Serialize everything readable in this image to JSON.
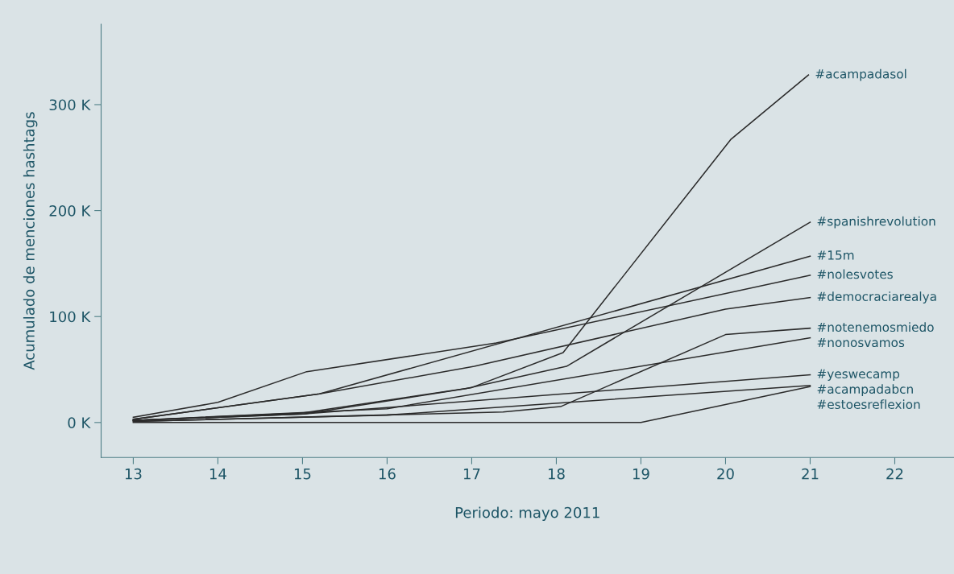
{
  "chart_data": {
    "type": "line",
    "xlabel": "Periodo: mayo 2011",
    "ylabel": "Acumulado de menciones hashtags",
    "xlim": [
      12.62,
      22.7
    ],
    "xticks": [
      13,
      14,
      15,
      16,
      17,
      18,
      19,
      20,
      21,
      22
    ],
    "ylim": [
      -33,
      376
    ],
    "yticks": [
      {
        "value": 0,
        "label": "0 K"
      },
      {
        "value": 100,
        "label": "100 K"
      },
      {
        "value": 200,
        "label": "200 K"
      },
      {
        "value": 300,
        "label": "300 K"
      }
    ],
    "grid": false,
    "legend": false,
    "marker": "none",
    "line_style": "solid",
    "series": [
      {
        "name": "#acampadasol",
        "color": "#2b2b2b",
        "x": [
          13,
          15,
          17,
          18.08,
          20.06,
          20.98
        ],
        "values": [
          2,
          9,
          33,
          66,
          267,
          328
        ]
      },
      {
        "name": "#spanishrevolution",
        "color": "#2b2b2b",
        "x": [
          13,
          15.02,
          16.93,
          18.12,
          21
        ],
        "values": [
          2,
          8,
          32,
          53,
          189
        ]
      },
      {
        "name": "#15m",
        "color": "#2b2b2b",
        "x": [
          13,
          15.2,
          21
        ],
        "values": [
          3,
          27,
          157
        ]
      },
      {
        "name": "#nolesvotes",
        "color": "#2b2b2b",
        "x": [
          13,
          14,
          15.05,
          17.29,
          21
        ],
        "values": [
          5,
          19,
          48,
          75,
          139
        ]
      },
      {
        "name": "#democraciarealya",
        "color": "#2b2b2b",
        "x": [
          13,
          15.2,
          17.03,
          20,
          21
        ],
        "values": [
          3,
          27,
          53,
          107,
          118
        ]
      },
      {
        "name": "#notenemosmiedo",
        "color": "#2b2b2b",
        "x": [
          13,
          17.37,
          18.05,
          20,
          21
        ],
        "values": [
          1,
          10,
          15,
          83,
          89
        ]
      },
      {
        "name": "#nonosvamos",
        "color": "#2b2b2b",
        "x": [
          13,
          16,
          21
        ],
        "values": [
          2,
          13,
          80
        ]
      },
      {
        "name": "#yeswecamp",
        "color": "#2b2b2b",
        "x": [
          13,
          15,
          21
        ],
        "values": [
          2,
          8,
          45
        ]
      },
      {
        "name": "#acampadabcn",
        "color": "#2b2b2b",
        "x": [
          13,
          16,
          21
        ],
        "values": [
          1,
          7,
          35
        ]
      },
      {
        "name": "#estoesreflexion",
        "color": "#2b2b2b",
        "x": [
          13,
          19,
          21
        ],
        "values": [
          0,
          0,
          34
        ]
      }
    ]
  }
}
